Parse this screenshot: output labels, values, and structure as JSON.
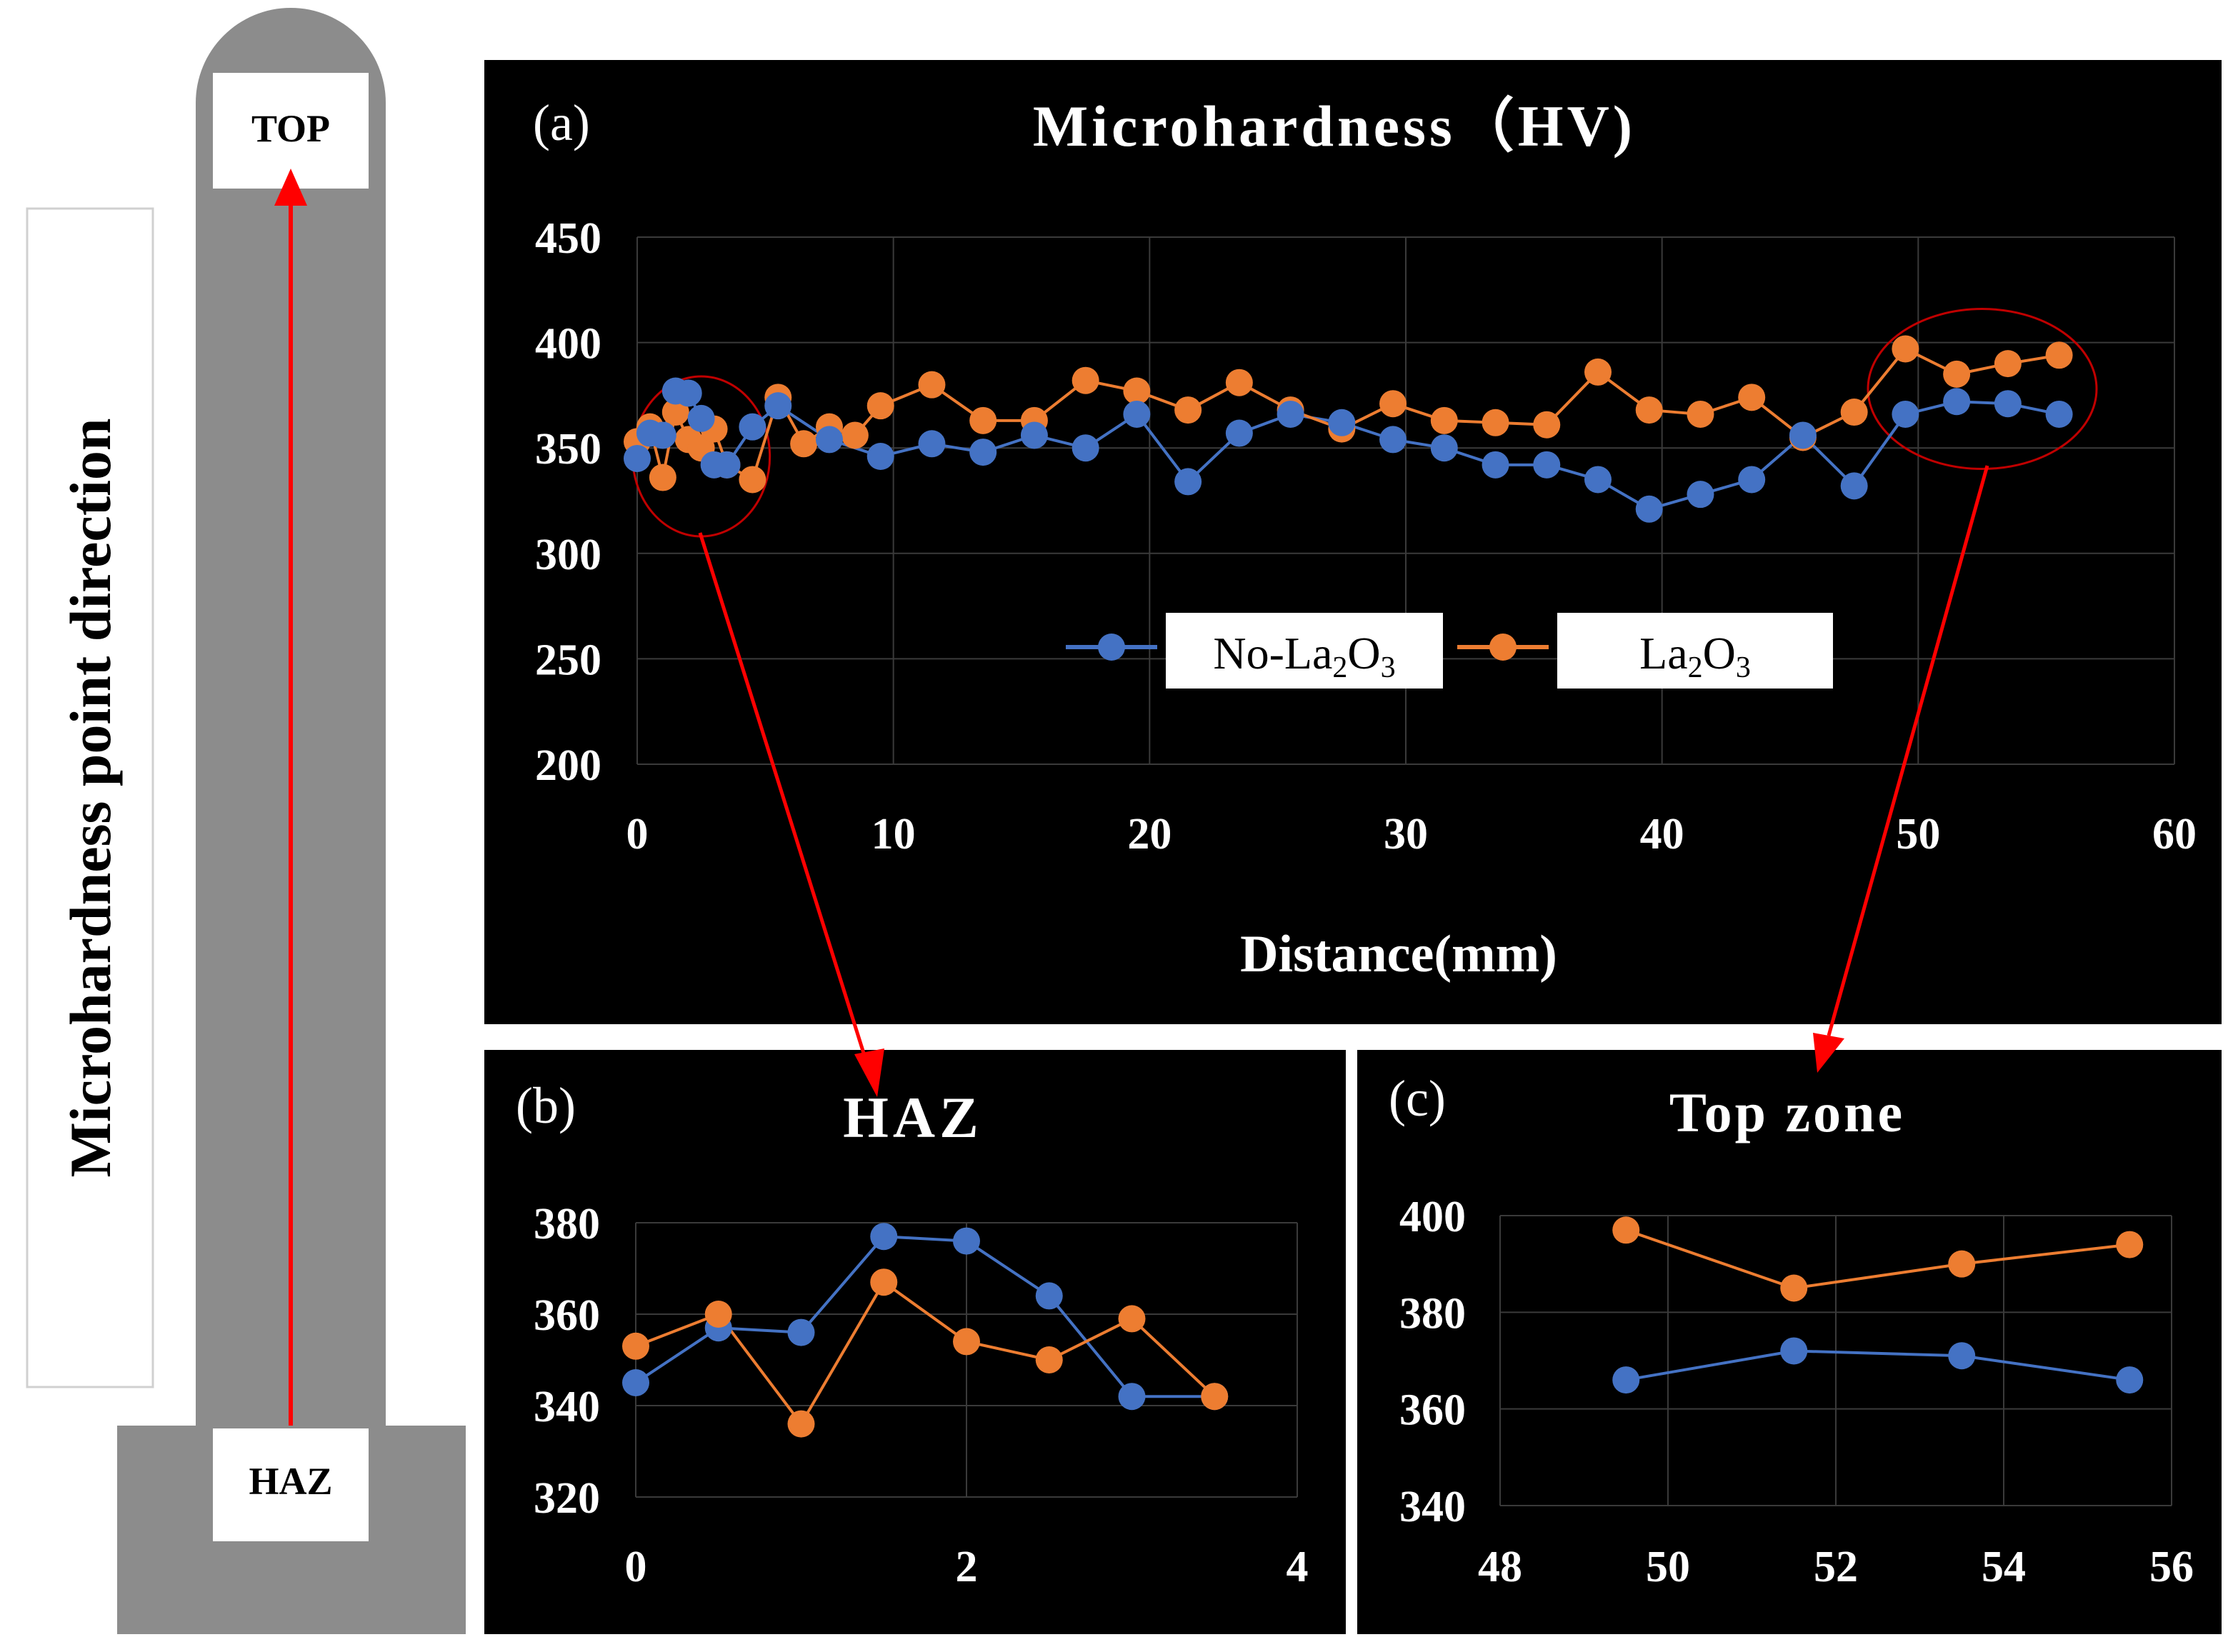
{
  "schematic": {
    "top_label": "TOP",
    "bottom_label": "HAZ",
    "direction_label": "Microhardness point direction",
    "body_color": "#8c8c8c",
    "arrow_color": "#ff0000"
  },
  "colors": {
    "background": "#000000",
    "text": "#ffffff",
    "grid": "#3a3a3a",
    "no_la2o3": "#4472c4",
    "la2o3": "#ed7d31",
    "callout": "#ff0000",
    "highlight_ellipse": "#c00000"
  },
  "legend": {
    "no_la2o3": {
      "prefix": "No-La",
      "sub1": "2",
      "mid": "O",
      "sub2": "3"
    },
    "la2o3": {
      "prefix": "La",
      "sub1": "2",
      "mid": "O",
      "sub2": "3"
    }
  },
  "chart_data": [
    {
      "type": "line",
      "panel_label": "(a)",
      "title": "Microhardness（HV)",
      "xlabel": "Distance(mm)",
      "ylabel": "",
      "xlim": [
        0,
        60
      ],
      "ylim": [
        200,
        450
      ],
      "xticks": [
        "0",
        "10",
        "20",
        "30",
        "40",
        "50",
        "60"
      ],
      "yticks": [
        "200",
        "250",
        "300",
        "350",
        "400",
        "450"
      ],
      "grid": true,
      "legend_position": "center",
      "series": [
        {
          "name": "No-La2O3",
          "points": [
            [
              0,
              345
            ],
            [
              0.5,
              357
            ],
            [
              1,
              356
            ],
            [
              1.5,
              377
            ],
            [
              2,
              376
            ],
            [
              2.5,
              364
            ],
            [
              3,
              342
            ],
            [
              3.5,
              342
            ],
            [
              4.5,
              360
            ],
            [
              5.5,
              370
            ],
            [
              7.5,
              354
            ],
            [
              9.5,
              346
            ],
            [
              11.5,
              352
            ],
            [
              13.5,
              348
            ],
            [
              15.5,
              356
            ],
            [
              17.5,
              350
            ],
            [
              19.5,
              366
            ],
            [
              21.5,
              334
            ],
            [
              23.5,
              357
            ],
            [
              25.5,
              366
            ],
            [
              27.5,
              362
            ],
            [
              29.5,
              354
            ],
            [
              31.5,
              350
            ],
            [
              33.5,
              342
            ],
            [
              35.5,
              342
            ],
            [
              37.5,
              335
            ],
            [
              39.5,
              321
            ],
            [
              41.5,
              328
            ],
            [
              43.5,
              335
            ],
            [
              45.5,
              356
            ],
            [
              47.5,
              332
            ],
            [
              49.5,
              366
            ],
            [
              51.5,
              372
            ],
            [
              53.5,
              371
            ],
            [
              55.5,
              366
            ]
          ]
        },
        {
          "name": "La2O3",
          "points": [
            [
              0,
              353
            ],
            [
              0.5,
              360
            ],
            [
              1,
              336
            ],
            [
              1.5,
              367
            ],
            [
              2,
              354
            ],
            [
              2.5,
              350
            ],
            [
              3,
              359
            ],
            [
              3.5,
              342
            ],
            [
              4.5,
              335
            ],
            [
              5.5,
              374
            ],
            [
              6.5,
              352
            ],
            [
              7.5,
              360
            ],
            [
              8.5,
              356
            ],
            [
              9.5,
              370
            ],
            [
              11.5,
              380
            ],
            [
              13.5,
              363
            ],
            [
              15.5,
              363
            ],
            [
              17.5,
              382
            ],
            [
              19.5,
              377
            ],
            [
              21.5,
              368
            ],
            [
              23.5,
              381
            ],
            [
              25.5,
              368
            ],
            [
              27.5,
              359
            ],
            [
              29.5,
              371
            ],
            [
              31.5,
              363
            ],
            [
              33.5,
              362
            ],
            [
              35.5,
              361
            ],
            [
              37.5,
              386
            ],
            [
              39.5,
              368
            ],
            [
              41.5,
              366
            ],
            [
              43.5,
              374
            ],
            [
              45.5,
              355
            ],
            [
              47.5,
              367
            ],
            [
              49.5,
              397
            ],
            [
              51.5,
              385
            ],
            [
              53.5,
              390
            ],
            [
              55.5,
              394
            ]
          ]
        }
      ]
    },
    {
      "type": "line",
      "panel_label": "(b)",
      "title": "HAZ",
      "xlim": [
        0,
        4
      ],
      "ylim": [
        320,
        380
      ],
      "xticks": [
        "0",
        "2",
        "4"
      ],
      "yticks": [
        "320",
        "340",
        "360",
        "380"
      ],
      "grid": true,
      "series": [
        {
          "name": "No-La2O3",
          "points": [
            [
              0,
              345
            ],
            [
              0.5,
              357
            ],
            [
              1,
              356
            ],
            [
              1.5,
              377
            ],
            [
              2,
              376
            ],
            [
              2.5,
              364
            ],
            [
              3,
              342
            ],
            [
              3.5,
              342
            ]
          ]
        },
        {
          "name": "La2O3",
          "points": [
            [
              0,
              353
            ],
            [
              0.5,
              360
            ],
            [
              1,
              336
            ],
            [
              1.5,
              367
            ],
            [
              2,
              354
            ],
            [
              2.5,
              350
            ],
            [
              3,
              359
            ],
            [
              3.5,
              342
            ]
          ]
        }
      ]
    },
    {
      "type": "line",
      "panel_label": "(c)",
      "title": "Top zone",
      "xlim": [
        48,
        56
      ],
      "ylim": [
        340,
        400
      ],
      "xticks": [
        "48",
        "50",
        "52",
        "54",
        "56"
      ],
      "yticks": [
        "340",
        "360",
        "380",
        "400"
      ],
      "grid": true,
      "series": [
        {
          "name": "No-La2O3",
          "points": [
            [
              49.5,
              366
            ],
            [
              51.5,
              372
            ],
            [
              53.5,
              371
            ],
            [
              55.5,
              366
            ]
          ]
        },
        {
          "name": "La2O3",
          "points": [
            [
              49.5,
              397
            ],
            [
              51.5,
              385
            ],
            [
              53.5,
              390
            ],
            [
              55.5,
              394
            ]
          ]
        }
      ]
    }
  ]
}
